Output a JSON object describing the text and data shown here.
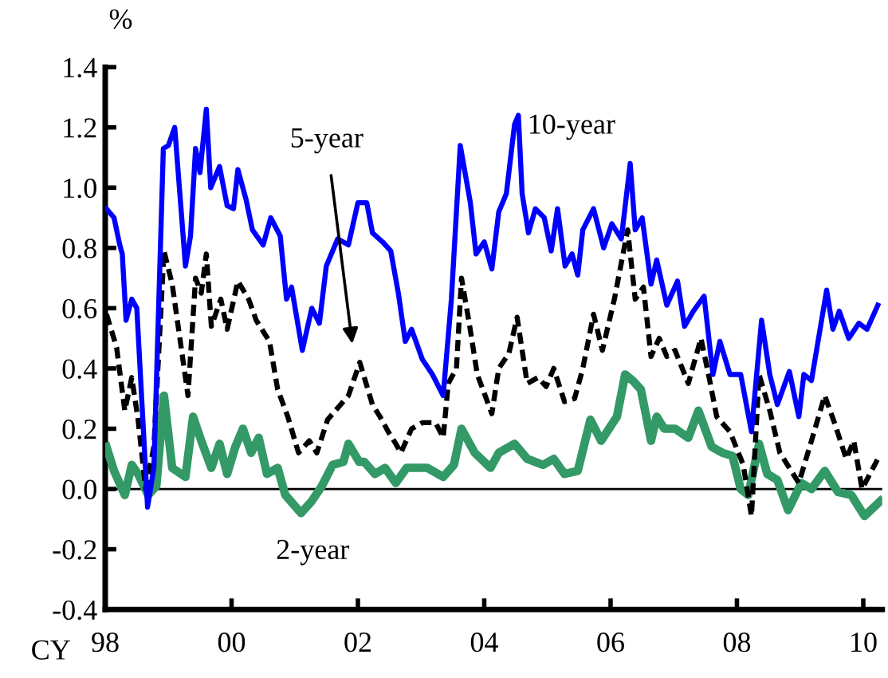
{
  "chart_data": {
    "type": "line",
    "xlabel": "CY",
    "ylabel": "%",
    "xlim": [
      1998,
      2010.3
    ],
    "ylim": [
      -0.4,
      1.4
    ],
    "xticks": [
      {
        "value": 1998,
        "label": "98"
      },
      {
        "value": 2000,
        "label": "00"
      },
      {
        "value": 2002,
        "label": "02"
      },
      {
        "value": 2004,
        "label": "04"
      },
      {
        "value": 2006,
        "label": "06"
      },
      {
        "value": 2008,
        "label": "08"
      },
      {
        "value": 2010,
        "label": "10"
      }
    ],
    "yticks": [
      -0.4,
      -0.2,
      {
        "value": 0,
        "label": "0.0"
      },
      0.2,
      0.4,
      0.6,
      0.8,
      {
        "value": 1,
        "label": "1.0"
      },
      1.2,
      1.4
    ],
    "grid": false,
    "legend": false,
    "marker": "none",
    "ref_lines": [
      {
        "axis": "y",
        "value": 0,
        "color": "#000000",
        "line_style": "solid"
      }
    ],
    "series": [
      {
        "name": "10-year",
        "color": "#0000ff",
        "line_style": "solid",
        "x": [
          1998.02,
          1998.14,
          1998.23,
          1998.27,
          1998.33,
          1998.42,
          1998.5,
          1998.67,
          1998.77,
          1998.92,
          1999.0,
          1999.1,
          1999.27,
          1999.35,
          1999.43,
          1999.5,
          1999.6,
          1999.67,
          1999.81,
          1999.93,
          2000.03,
          2000.1,
          2000.23,
          2000.33,
          2000.5,
          2000.62,
          2000.77,
          2000.87,
          2000.95,
          2001.12,
          2001.27,
          2001.39,
          2001.5,
          2001.68,
          2001.85,
          2002.0,
          2002.14,
          2002.23,
          2002.39,
          2002.52,
          2002.64,
          2002.75,
          2002.85,
          2003.02,
          2003.18,
          2003.35,
          2003.48,
          2003.62,
          2003.78,
          2003.87,
          2004.0,
          2004.12,
          2004.23,
          2004.35,
          2004.48,
          2004.54,
          2004.6,
          2004.7,
          2004.81,
          2004.95,
          2005.06,
          2005.16,
          2005.28,
          2005.39,
          2005.48,
          2005.56,
          2005.73,
          2005.89,
          2006.02,
          2006.17,
          2006.31,
          2006.39,
          2006.5,
          2006.64,
          2006.73,
          2006.89,
          2007.06,
          2007.17,
          2007.31,
          2007.48,
          2007.62,
          2007.73,
          2007.89,
          2008.06,
          2008.23,
          2008.39,
          2008.52,
          2008.64,
          2008.83,
          2008.98,
          2009.06,
          2009.18,
          2009.42,
          2009.52,
          2009.62,
          2009.77,
          2009.93,
          2010.06,
          2010.23
        ],
        "values": [
          0.93,
          0.9,
          0.81,
          0.78,
          0.56,
          0.63,
          0.6,
          -0.06,
          0.07,
          1.13,
          1.14,
          1.2,
          0.74,
          0.84,
          1.13,
          1.05,
          1.26,
          1.0,
          1.07,
          0.94,
          0.93,
          1.06,
          0.96,
          0.86,
          0.81,
          0.9,
          0.84,
          0.63,
          0.67,
          0.46,
          0.6,
          0.55,
          0.74,
          0.83,
          0.81,
          0.95,
          0.95,
          0.85,
          0.82,
          0.79,
          0.65,
          0.49,
          0.53,
          0.43,
          0.38,
          0.31,
          0.63,
          1.14,
          0.95,
          0.78,
          0.82,
          0.73,
          0.92,
          0.98,
          1.21,
          1.24,
          0.98,
          0.85,
          0.93,
          0.9,
          0.79,
          0.93,
          0.74,
          0.78,
          0.71,
          0.86,
          0.93,
          0.8,
          0.88,
          0.83,
          1.08,
          0.86,
          0.9,
          0.68,
          0.76,
          0.61,
          0.69,
          0.54,
          0.59,
          0.64,
          0.38,
          0.49,
          0.38,
          0.38,
          0.19,
          0.56,
          0.38,
          0.28,
          0.39,
          0.24,
          0.38,
          0.36,
          0.66,
          0.53,
          0.59,
          0.5,
          0.55,
          0.53,
          0.61
        ]
      },
      {
        "name": "5-year",
        "color": "#000000",
        "line_style": "dashed",
        "x": [
          1998.02,
          1998.18,
          1998.31,
          1998.42,
          1998.52,
          1998.64,
          1998.77,
          1998.93,
          1999.06,
          1999.31,
          1999.43,
          1999.52,
          1999.6,
          1999.68,
          1999.83,
          1999.93,
          2000.1,
          2000.27,
          2000.39,
          2000.6,
          2000.73,
          2000.89,
          2001.06,
          2001.23,
          2001.35,
          2001.52,
          2001.85,
          2002.03,
          2002.23,
          2002.35,
          2002.48,
          2002.6,
          2002.68,
          2002.85,
          2003.02,
          2003.23,
          2003.35,
          2003.43,
          2003.56,
          2003.64,
          2003.77,
          2003.89,
          2004.12,
          2004.23,
          2004.39,
          2004.52,
          2004.68,
          2004.85,
          2004.98,
          2005.1,
          2005.27,
          2005.43,
          2005.56,
          2005.73,
          2005.87,
          2006.06,
          2006.27,
          2006.39,
          2006.52,
          2006.64,
          2006.77,
          2006.89,
          2007.02,
          2007.23,
          2007.43,
          2007.56,
          2007.68,
          2007.89,
          2008.1,
          2008.23,
          2008.35,
          2008.52,
          2008.68,
          2008.98,
          2009.18,
          2009.39,
          2009.56,
          2009.73,
          2009.85,
          2009.98,
          2010.23
        ],
        "values": [
          0.58,
          0.47,
          0.26,
          0.37,
          0.23,
          0.0,
          0.14,
          0.79,
          0.68,
          0.31,
          0.7,
          0.65,
          0.78,
          0.54,
          0.63,
          0.53,
          0.69,
          0.63,
          0.56,
          0.49,
          0.33,
          0.24,
          0.12,
          0.16,
          0.12,
          0.23,
          0.31,
          0.42,
          0.28,
          0.24,
          0.19,
          0.15,
          0.12,
          0.2,
          0.22,
          0.22,
          0.17,
          0.35,
          0.4,
          0.7,
          0.54,
          0.38,
          0.25,
          0.4,
          0.45,
          0.57,
          0.35,
          0.37,
          0.34,
          0.4,
          0.29,
          0.3,
          0.4,
          0.58,
          0.46,
          0.63,
          0.86,
          0.63,
          0.67,
          0.44,
          0.5,
          0.44,
          0.46,
          0.35,
          0.5,
          0.37,
          0.24,
          0.19,
          0.08,
          -0.09,
          0.38,
          0.26,
          0.12,
          0.02,
          0.16,
          0.31,
          0.21,
          0.1,
          0.16,
          0.0,
          0.1
        ]
      },
      {
        "name": "2-year",
        "color": "#339966",
        "line_style": "solid",
        "x": [
          1998.02,
          1998.14,
          1998.31,
          1998.42,
          1998.52,
          1998.68,
          1998.81,
          1998.93,
          1999.06,
          1999.27,
          1999.39,
          1999.52,
          1999.68,
          1999.81,
          1999.93,
          2000.06,
          2000.18,
          2000.31,
          2000.43,
          2000.56,
          2000.73,
          2000.85,
          2001.1,
          2001.27,
          2001.43,
          2001.6,
          2001.77,
          2001.85,
          2002.02,
          2002.1,
          2002.27,
          2002.43,
          2002.6,
          2002.77,
          2002.93,
          2003.1,
          2003.35,
          2003.52,
          2003.64,
          2003.85,
          2004.1,
          2004.23,
          2004.48,
          2004.68,
          2004.93,
          2005.1,
          2005.27,
          2005.48,
          2005.68,
          2005.85,
          2006.1,
          2006.23,
          2006.35,
          2006.48,
          2006.64,
          2006.73,
          2006.85,
          2007.02,
          2007.23,
          2007.39,
          2007.6,
          2007.77,
          2007.93,
          2008.06,
          2008.18,
          2008.35,
          2008.48,
          2008.64,
          2008.81,
          2009.02,
          2009.18,
          2009.39,
          2009.6,
          2009.81,
          2010.02,
          2010.27
        ],
        "values": [
          0.14,
          0.06,
          -0.02,
          0.08,
          0.05,
          -0.02,
          0.01,
          0.31,
          0.07,
          0.04,
          0.24,
          0.16,
          0.07,
          0.15,
          0.05,
          0.14,
          0.2,
          0.12,
          0.17,
          0.05,
          0.07,
          -0.02,
          -0.08,
          -0.04,
          0.01,
          0.08,
          0.09,
          0.15,
          0.09,
          0.09,
          0.05,
          0.07,
          0.02,
          0.07,
          0.07,
          0.07,
          0.04,
          0.08,
          0.2,
          0.12,
          0.07,
          0.12,
          0.15,
          0.1,
          0.08,
          0.1,
          0.05,
          0.06,
          0.23,
          0.16,
          0.24,
          0.38,
          0.36,
          0.33,
          0.16,
          0.24,
          0.2,
          0.2,
          0.17,
          0.26,
          0.14,
          0.12,
          0.11,
          0.0,
          -0.02,
          0.15,
          0.05,
          0.03,
          -0.07,
          0.02,
          0.0,
          0.06,
          -0.01,
          -0.02,
          -0.09,
          -0.04
        ]
      }
    ]
  }
}
